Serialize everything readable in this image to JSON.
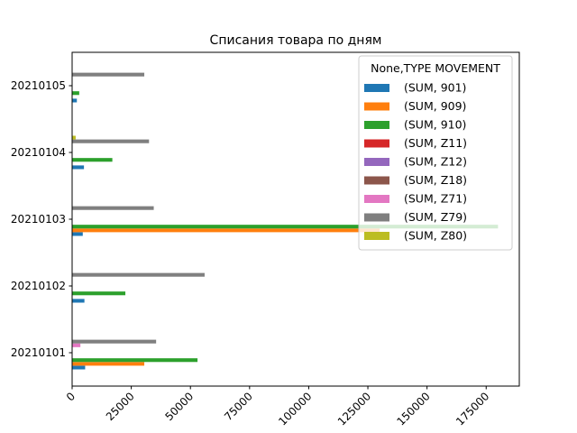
{
  "chart_data": {
    "type": "bar",
    "orientation": "horizontal",
    "title": "Списания товара по дням",
    "xlabel": "",
    "ylabel": "",
    "xlim": [
      0,
      189000
    ],
    "x_ticks": [
      0,
      25000,
      50000,
      75000,
      100000,
      125000,
      150000,
      175000
    ],
    "grid": false,
    "legend_position": "top-right",
    "legend_title": "None,TYPE MOVEMENT",
    "categories": [
      "20210101",
      "20210102",
      "20210103",
      "20210104",
      "20210105"
    ],
    "series": [
      {
        "name": "(SUM, 901)",
        "color": "#1f77b4",
        "values": [
          5500,
          5200,
          4500,
          5000,
          2000
        ]
      },
      {
        "name": "(SUM, 909)",
        "color": "#ff7f0e",
        "values": [
          30500,
          0,
          130000,
          0,
          0
        ]
      },
      {
        "name": "(SUM, 910)",
        "color": "#2ca02c",
        "values": [
          53000,
          22500,
          180000,
          17000,
          3000
        ]
      },
      {
        "name": "(SUM, Z11)",
        "color": "#d62728",
        "values": [
          0,
          0,
          0,
          0,
          0
        ]
      },
      {
        "name": "(SUM, Z12)",
        "color": "#9467bd",
        "values": [
          0,
          0,
          0,
          0,
          0
        ]
      },
      {
        "name": "(SUM, Z18)",
        "color": "#8c564b",
        "values": [
          0,
          0,
          0,
          0,
          0
        ]
      },
      {
        "name": "(SUM, Z71)",
        "color": "#e377c2",
        "values": [
          3500,
          0,
          0,
          0,
          0
        ]
      },
      {
        "name": "(SUM, Z79)",
        "color": "#7f7f7f",
        "values": [
          35500,
          56000,
          34500,
          32500,
          30500
        ]
      },
      {
        "name": "(SUM, Z80)",
        "color": "#bcbd22",
        "values": [
          0,
          0,
          0,
          1500,
          0
        ]
      }
    ]
  }
}
